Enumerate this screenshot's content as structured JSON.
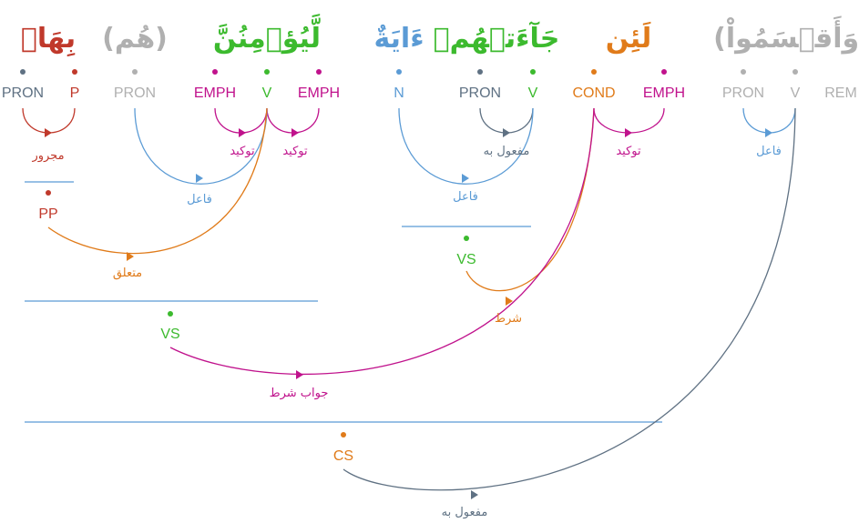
{
  "colors": {
    "gray": "#b0b0b0",
    "slate": "#5f7183",
    "red": "#c0392b",
    "magenta": "#c0128c",
    "green": "#3cba2e",
    "blue": "#5b9bd5",
    "orange": "#e07b1a"
  },
  "words": [
    {
      "id": "w1",
      "text": "بِهَاۚ",
      "color": "red"
    },
    {
      "id": "w2",
      "text": "(هُم)",
      "color": "gray"
    },
    {
      "id": "w3",
      "text": "لَّيُؤۡمِنُنَّ",
      "color": "green"
    },
    {
      "id": "w4",
      "text": "ءَايَةٌ",
      "color": "blue"
    },
    {
      "id": "w5",
      "text": "جَآءَتۡهُمۡ",
      "color": "green"
    },
    {
      "id": "w6",
      "text": "لَئِن",
      "color": "orange"
    },
    {
      "id": "w7",
      "text": "(وَأَقۡسَمُواْ)",
      "color": "gray"
    }
  ],
  "tags": [
    {
      "id": "t_pron1",
      "label": "PRON",
      "color": "slate"
    },
    {
      "id": "t_p",
      "label": "P",
      "color": "red"
    },
    {
      "id": "t_pron2",
      "label": "PRON",
      "color": "gray"
    },
    {
      "id": "t_emph1",
      "label": "EMPH",
      "color": "magenta"
    },
    {
      "id": "t_v1",
      "label": "V",
      "color": "green"
    },
    {
      "id": "t_emph2",
      "label": "EMPH",
      "color": "magenta"
    },
    {
      "id": "t_n",
      "label": "N",
      "color": "blue"
    },
    {
      "id": "t_pron3",
      "label": "PRON",
      "color": "slate"
    },
    {
      "id": "t_v2",
      "label": "V",
      "color": "green"
    },
    {
      "id": "t_cond",
      "label": "COND",
      "color": "orange"
    },
    {
      "id": "t_emph3",
      "label": "EMPH",
      "color": "magenta"
    },
    {
      "id": "t_pron4",
      "label": "PRON",
      "color": "gray"
    },
    {
      "id": "t_v3",
      "label": "V",
      "color": "gray"
    },
    {
      "id": "t_rem",
      "label": "REM",
      "color": "gray"
    }
  ],
  "nodes": [
    {
      "id": "n_pp",
      "label": "PP",
      "color": "red"
    },
    {
      "id": "n_vs1",
      "label": "VS",
      "color": "green"
    },
    {
      "id": "n_vs2",
      "label": "VS",
      "color": "green"
    },
    {
      "id": "n_cs",
      "label": "CS",
      "color": "orange"
    }
  ],
  "relations": [
    {
      "id": "r1",
      "label": "مجرور",
      "color": "red"
    },
    {
      "id": "r2",
      "label": "توكيد",
      "color": "magenta"
    },
    {
      "id": "r3",
      "label": "توكيد",
      "color": "magenta"
    },
    {
      "id": "r4",
      "label": "فاعل",
      "color": "blue"
    },
    {
      "id": "r5",
      "label": "مفعول به",
      "color": "slate"
    },
    {
      "id": "r6",
      "label": "فاعل",
      "color": "blue"
    },
    {
      "id": "r7",
      "label": "توكيد",
      "color": "magenta"
    },
    {
      "id": "r8",
      "label": "فاعل",
      "color": "blue"
    },
    {
      "id": "r9",
      "label": "متعلق",
      "color": "orange"
    },
    {
      "id": "r10",
      "label": "شرط",
      "color": "orange"
    },
    {
      "id": "r11",
      "label": "جواب شرط",
      "color": "magenta"
    },
    {
      "id": "r12",
      "label": "مفعول به",
      "color": "slate"
    }
  ]
}
